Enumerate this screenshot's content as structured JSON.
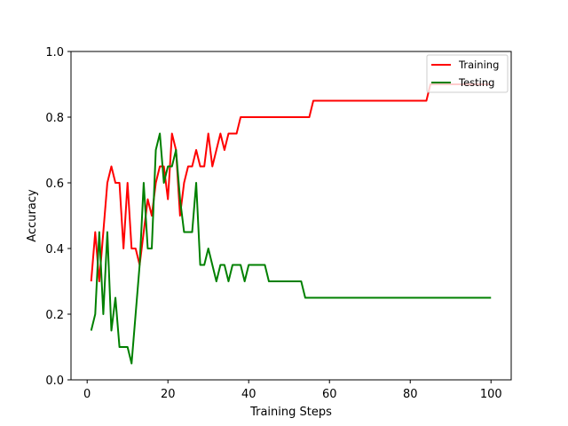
{
  "chart_data": {
    "type": "line",
    "title": "",
    "xlabel": "Training Steps",
    "ylabel": "Accuracy",
    "xlim": [
      -4,
      105
    ],
    "ylim": [
      0.0,
      1.0
    ],
    "xticks": [
      0,
      20,
      40,
      60,
      80,
      100
    ],
    "xtick_labels": [
      "0",
      "20",
      "40",
      "60",
      "80",
      "100"
    ],
    "yticks": [
      0.0,
      0.2,
      0.4,
      0.6,
      0.8,
      1.0
    ],
    "ytick_labels": [
      "0.0",
      "0.2",
      "0.4",
      "0.6",
      "0.8",
      "1.0"
    ],
    "grid": false,
    "legend_position": "top-right",
    "series": [
      {
        "name": "Training",
        "color": "#ff0000",
        "x": [
          1,
          2,
          3,
          4,
          5,
          6,
          7,
          8,
          9,
          10,
          11,
          12,
          13,
          14,
          15,
          16,
          17,
          18,
          19,
          20,
          21,
          22,
          23,
          24,
          25,
          26,
          27,
          28,
          29,
          30,
          31,
          32,
          33,
          34,
          35,
          36,
          37,
          38,
          39,
          40,
          41,
          42,
          43,
          44,
          45,
          46,
          47,
          48,
          49,
          50,
          51,
          52,
          53,
          54,
          55,
          56,
          57,
          58,
          59,
          60,
          61,
          62,
          63,
          64,
          65,
          66,
          67,
          68,
          69,
          70,
          71,
          72,
          73,
          74,
          75,
          76,
          77,
          78,
          79,
          80,
          81,
          82,
          83,
          84,
          85,
          86,
          87,
          88,
          89,
          90,
          91,
          92,
          93,
          94,
          95,
          96,
          97,
          98,
          99,
          100
        ],
        "values": [
          0.3,
          0.45,
          0.3,
          0.45,
          0.6,
          0.65,
          0.6,
          0.6,
          0.4,
          0.6,
          0.4,
          0.4,
          0.35,
          0.45,
          0.55,
          0.5,
          0.6,
          0.65,
          0.65,
          0.55,
          0.75,
          0.7,
          0.5,
          0.6,
          0.65,
          0.65,
          0.7,
          0.65,
          0.65,
          0.75,
          0.65,
          0.7,
          0.75,
          0.7,
          0.75,
          0.75,
          0.75,
          0.8,
          0.8,
          0.8,
          0.8,
          0.8,
          0.8,
          0.8,
          0.8,
          0.8,
          0.8,
          0.8,
          0.8,
          0.8,
          0.8,
          0.8,
          0.8,
          0.8,
          0.8,
          0.85,
          0.85,
          0.85,
          0.85,
          0.85,
          0.85,
          0.85,
          0.85,
          0.85,
          0.85,
          0.85,
          0.85,
          0.85,
          0.85,
          0.85,
          0.85,
          0.85,
          0.85,
          0.85,
          0.85,
          0.85,
          0.85,
          0.85,
          0.85,
          0.85,
          0.85,
          0.85,
          0.85,
          0.85,
          0.9,
          0.9,
          0.9,
          0.9,
          0.9,
          0.9,
          0.9,
          0.9,
          0.9,
          0.9,
          0.9,
          0.9,
          0.9,
          0.9,
          0.9,
          0.9
        ]
      },
      {
        "name": "Testing",
        "color": "#008000",
        "x": [
          1,
          2,
          3,
          4,
          5,
          6,
          7,
          8,
          9,
          10,
          11,
          12,
          13,
          14,
          15,
          16,
          17,
          18,
          19,
          20,
          21,
          22,
          23,
          24,
          25,
          26,
          27,
          28,
          29,
          30,
          31,
          32,
          33,
          34,
          35,
          36,
          37,
          38,
          39,
          40,
          41,
          42,
          43,
          44,
          45,
          46,
          47,
          48,
          49,
          50,
          51,
          52,
          53,
          54,
          55,
          56,
          57,
          58,
          59,
          60,
          61,
          62,
          63,
          64,
          65,
          66,
          67,
          68,
          69,
          70,
          71,
          72,
          73,
          74,
          75,
          76,
          77,
          78,
          79,
          80,
          81,
          82,
          83,
          84,
          85,
          86,
          87,
          88,
          89,
          90,
          91,
          92,
          93,
          94,
          95,
          96,
          97,
          98,
          99,
          100
        ],
        "values": [
          0.15,
          0.2,
          0.45,
          0.2,
          0.45,
          0.15,
          0.25,
          0.1,
          0.1,
          0.1,
          0.05,
          0.2,
          0.35,
          0.6,
          0.4,
          0.4,
          0.7,
          0.75,
          0.6,
          0.65,
          0.65,
          0.7,
          0.55,
          0.45,
          0.45,
          0.45,
          0.6,
          0.35,
          0.35,
          0.4,
          0.35,
          0.3,
          0.35,
          0.35,
          0.3,
          0.35,
          0.35,
          0.35,
          0.3,
          0.35,
          0.35,
          0.35,
          0.35,
          0.35,
          0.3,
          0.3,
          0.3,
          0.3,
          0.3,
          0.3,
          0.3,
          0.3,
          0.3,
          0.25,
          0.25,
          0.25,
          0.25,
          0.25,
          0.25,
          0.25,
          0.25,
          0.25,
          0.25,
          0.25,
          0.25,
          0.25,
          0.25,
          0.25,
          0.25,
          0.25,
          0.25,
          0.25,
          0.25,
          0.25,
          0.25,
          0.25,
          0.25,
          0.25,
          0.25,
          0.25,
          0.25,
          0.25,
          0.25,
          0.25,
          0.25,
          0.25,
          0.25,
          0.25,
          0.25,
          0.25,
          0.25,
          0.25,
          0.25,
          0.25,
          0.25,
          0.25,
          0.25,
          0.25,
          0.25,
          0.25
        ]
      }
    ]
  }
}
